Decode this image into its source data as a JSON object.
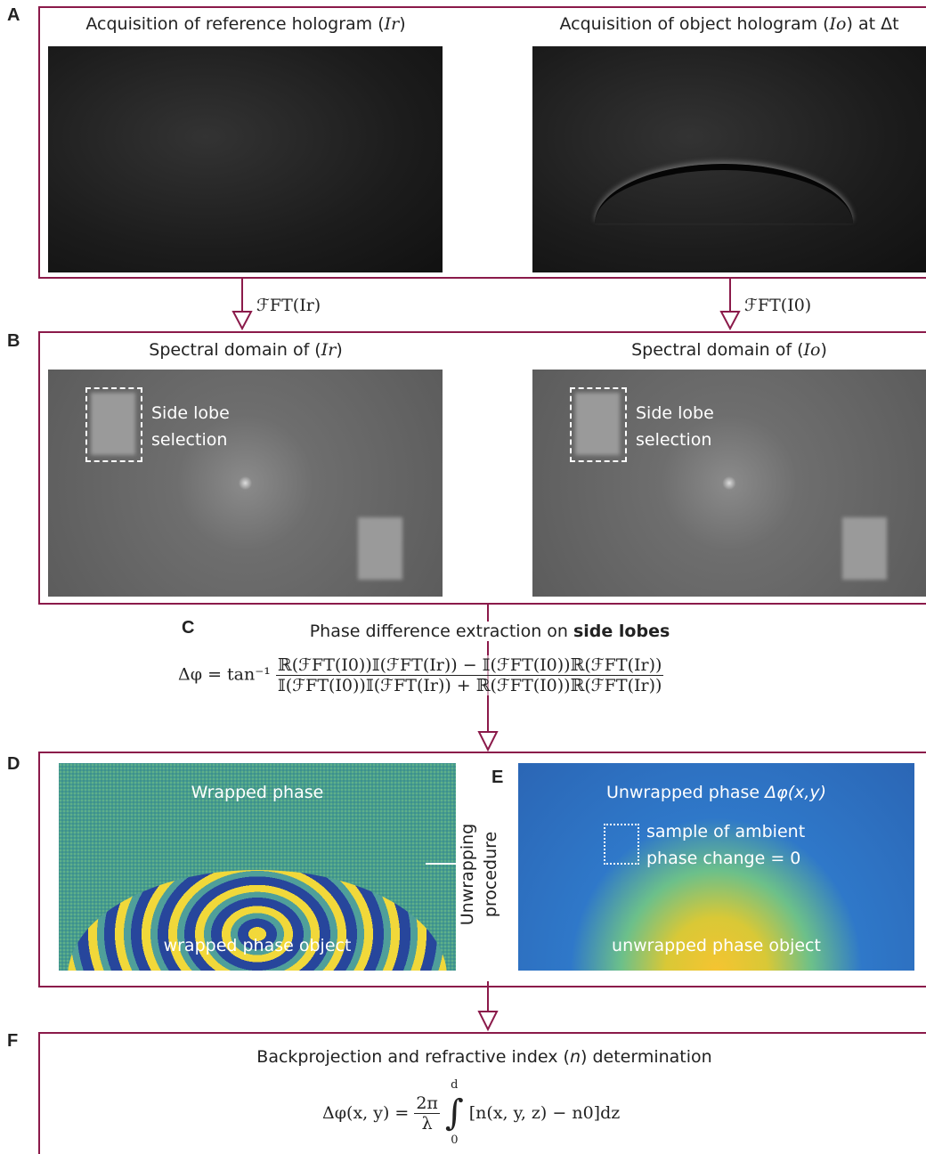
{
  "panels": {
    "a": "A",
    "b": "B",
    "c": "C",
    "d": "D",
    "e": "E",
    "f": "F"
  },
  "a": {
    "left_title": [
      "Acquisition of reference hologram (",
      "Ir",
      ")"
    ],
    "right_title": [
      "Acquisition of object hologram (",
      "Io",
      ") at Δt"
    ]
  },
  "arrows": {
    "left": "ℱFT(Ir)",
    "right": "ℱFT(I0)"
  },
  "b": {
    "left_title": [
      "Spectral domain of (",
      "Ir",
      ")"
    ],
    "right_title": [
      "Spectral domain of (",
      "Io",
      ")"
    ],
    "lobe_left": [
      "Side lobe",
      "selection"
    ],
    "lobe_right": [
      "Side lobe",
      "selection"
    ]
  },
  "c": {
    "title": [
      "Phase difference extraction on ",
      "side lobes"
    ],
    "equation": {
      "lhs": "Δφ = tan⁻¹",
      "numerator": "ℝ(ℱFT(I0))𝕀(ℱFT(Ir)) − 𝕀(ℱFT(I0))ℝ(ℱFT(Ir))",
      "denominator": "𝕀(ℱFT(I0))𝕀(ℱFT(Ir)) + ℝ(ℱFT(I0))ℝ(ℱFT(Ir))"
    }
  },
  "d": {
    "title": "Wrapped phase",
    "object": "wrapped phase object"
  },
  "unwrapping": [
    "Unwrapping",
    "procedure"
  ],
  "e": {
    "title": [
      "Unwrapped phase ",
      "Δφ(x,y)"
    ],
    "sample": [
      "sample of ambient",
      "phase change = 0"
    ],
    "object": "unwrapped phase object"
  },
  "f": {
    "title": [
      "Backprojection and refractive index (",
      "n",
      ") determination"
    ],
    "equation": {
      "lhs": "Δφ(x, y) =",
      "numerator": "2π",
      "denominator": "λ",
      "integral": "∫",
      "upper": "d",
      "lower": "0",
      "integrand": "[n(x, y, z) − n0]dz"
    }
  }
}
